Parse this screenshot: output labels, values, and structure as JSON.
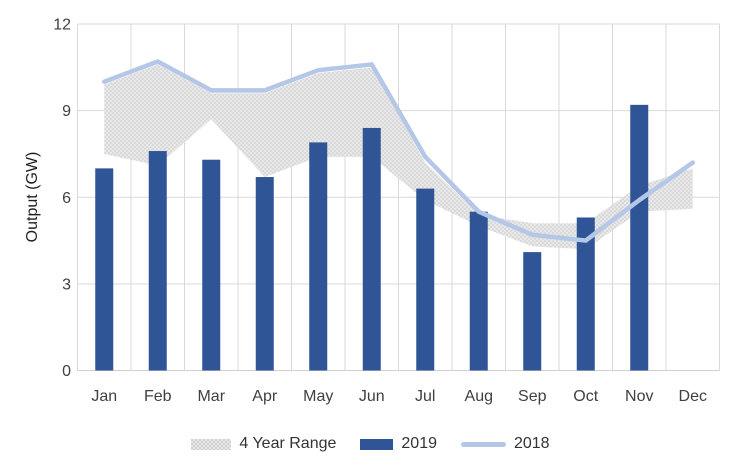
{
  "chart_data": {
    "type": "combo",
    "ylabel": "Output (GW)",
    "ylim": [
      0,
      12
    ],
    "yticks": [
      0,
      3,
      6,
      9,
      12
    ],
    "grid": true,
    "legend_position": "bottom",
    "categories": [
      "Jan",
      "Feb",
      "Mar",
      "Apr",
      "May",
      "Jun",
      "Jul",
      "Aug",
      "Sep",
      "Oct",
      "Nov",
      "Dec"
    ],
    "series": [
      {
        "name": "4 Year Range",
        "type": "range",
        "color": "#e8e8e8",
        "dot_color": "#c9c9c9",
        "upper": [
          9.9,
          10.6,
          9.6,
          9.6,
          10.3,
          10.5,
          7.2,
          5.4,
          5.1,
          5.1,
          6.4,
          7.0
        ],
        "lower": [
          7.5,
          7.1,
          8.7,
          6.7,
          7.4,
          7.4,
          5.9,
          5.0,
          4.3,
          4.2,
          5.5,
          5.6
        ]
      },
      {
        "name": "2019",
        "type": "bar",
        "color": "#2f5597",
        "values": [
          7.0,
          7.6,
          7.3,
          6.7,
          7.9,
          8.4,
          6.3,
          5.5,
          4.1,
          5.3,
          9.2,
          null
        ]
      },
      {
        "name": "2018",
        "type": "line",
        "color": "#b4c7e7",
        "values": [
          10.0,
          10.7,
          9.7,
          9.7,
          10.4,
          10.6,
          7.4,
          5.5,
          4.7,
          4.5,
          5.9,
          7.2
        ]
      }
    ]
  },
  "axis": {
    "tick_color": "#404040",
    "grid_color": "#d9d9d9",
    "axis_line_color": "#cfcfcf"
  }
}
